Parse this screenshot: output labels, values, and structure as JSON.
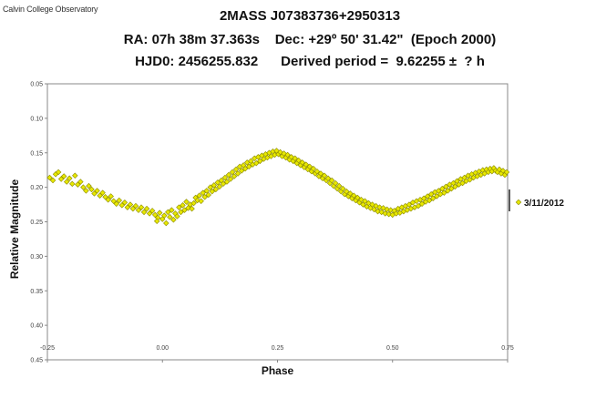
{
  "credit": "Calvin College Observatory",
  "title_lines": [
    "2MASS J07383736+2950313",
    "RA: 07h 38m 37.363s    Dec: +29º 50' 31.42\"  (Epoch 2000)",
    "HJD0: 2456255.832      Derived period =  9.62255 ±  ? h"
  ],
  "chart_data": {
    "type": "scatter",
    "xlabel": "Phase",
    "ylabel": "Relative Magnitude",
    "xlim": [
      -0.25,
      0.75
    ],
    "ylim": [
      0.05,
      0.45
    ],
    "y_inverted": true,
    "x_ticks": [
      -0.25,
      0.0,
      0.25,
      0.5,
      0.75
    ],
    "x_tick_labels": [
      "-0.25",
      "0.00",
      "0.25",
      "0.50",
      "0.75"
    ],
    "y_ticks": [
      0.05,
      0.1,
      0.15,
      0.2,
      0.25,
      0.3,
      0.35,
      0.4,
      0.45
    ],
    "y_tick_labels": [
      "0.05",
      "0.10",
      "0.15",
      "0.20",
      "0.25",
      "0.30",
      "0.35",
      "0.40",
      "0.45"
    ],
    "grid": false,
    "legend_position": "right",
    "series": [
      {
        "name": "3/11/2012",
        "color": "#e8e800",
        "edge_color": "#8a8a00",
        "marker": "diamond",
        "points": [
          [
            -0.245,
            0.186
          ],
          [
            -0.238,
            0.19
          ],
          [
            -0.232,
            0.181
          ],
          [
            -0.226,
            0.178
          ],
          [
            -0.22,
            0.188
          ],
          [
            -0.214,
            0.184
          ],
          [
            -0.208,
            0.192
          ],
          [
            -0.202,
            0.187
          ],
          [
            -0.196,
            0.195
          ],
          [
            -0.19,
            0.183
          ],
          [
            -0.184,
            0.196
          ],
          [
            -0.178,
            0.192
          ],
          [
            -0.172,
            0.2
          ],
          [
            -0.166,
            0.205
          ],
          [
            -0.16,
            0.198
          ],
          [
            -0.154,
            0.203
          ],
          [
            -0.148,
            0.209
          ],
          [
            -0.142,
            0.205
          ],
          [
            -0.136,
            0.212
          ],
          [
            -0.13,
            0.208
          ],
          [
            -0.124,
            0.214
          ],
          [
            -0.118,
            0.218
          ],
          [
            -0.112,
            0.213
          ],
          [
            -0.106,
            0.22
          ],
          [
            -0.1,
            0.224
          ],
          [
            -0.094,
            0.219
          ],
          [
            -0.088,
            0.226
          ],
          [
            -0.082,
            0.222
          ],
          [
            -0.076,
            0.229
          ],
          [
            -0.07,
            0.225
          ],
          [
            -0.064,
            0.231
          ],
          [
            -0.058,
            0.227
          ],
          [
            -0.052,
            0.233
          ],
          [
            -0.046,
            0.229
          ],
          [
            -0.04,
            0.236
          ],
          [
            -0.034,
            0.231
          ],
          [
            -0.028,
            0.238
          ],
          [
            -0.022,
            0.234
          ],
          [
            -0.016,
            0.24
          ],
          [
            -0.01,
            0.244
          ],
          [
            -0.012,
            0.249
          ],
          [
            -0.006,
            0.237
          ],
          [
            0.0,
            0.246
          ],
          [
            0.004,
            0.241
          ],
          [
            0.008,
            0.252
          ],
          [
            0.012,
            0.236
          ],
          [
            0.016,
            0.243
          ],
          [
            0.02,
            0.233
          ],
          [
            0.024,
            0.247
          ],
          [
            0.028,
            0.238
          ],
          [
            0.032,
            0.242
          ],
          [
            0.036,
            0.229
          ],
          [
            0.04,
            0.236
          ],
          [
            0.044,
            0.226
          ],
          [
            0.048,
            0.233
          ],
          [
            0.052,
            0.221
          ],
          [
            0.056,
            0.23
          ],
          [
            0.06,
            0.225
          ],
          [
            0.064,
            0.231
          ],
          [
            0.068,
            0.223
          ],
          [
            0.072,
            0.215
          ],
          [
            0.076,
            0.219
          ],
          [
            0.08,
            0.212
          ],
          [
            0.084,
            0.22
          ],
          [
            0.088,
            0.208
          ],
          [
            0.092,
            0.214
          ],
          [
            0.096,
            0.205
          ],
          [
            0.1,
            0.211
          ],
          [
            0.104,
            0.2
          ],
          [
            0.108,
            0.206
          ],
          [
            0.112,
            0.197
          ],
          [
            0.116,
            0.203
          ],
          [
            0.12,
            0.193
          ],
          [
            0.124,
            0.199
          ],
          [
            0.128,
            0.19
          ],
          [
            0.132,
            0.195
          ],
          [
            0.136,
            0.186
          ],
          [
            0.14,
            0.192
          ],
          [
            0.144,
            0.182
          ],
          [
            0.148,
            0.188
          ],
          [
            0.152,
            0.178
          ],
          [
            0.156,
            0.184
          ],
          [
            0.16,
            0.174
          ],
          [
            0.164,
            0.18
          ],
          [
            0.168,
            0.17
          ],
          [
            0.172,
            0.176
          ],
          [
            0.176,
            0.168
          ],
          [
            0.18,
            0.173
          ],
          [
            0.184,
            0.164
          ],
          [
            0.188,
            0.17
          ],
          [
            0.192,
            0.162
          ],
          [
            0.196,
            0.167
          ],
          [
            0.2,
            0.158
          ],
          [
            0.204,
            0.165
          ],
          [
            0.208,
            0.156
          ],
          [
            0.212,
            0.162
          ],
          [
            0.216,
            0.154
          ],
          [
            0.22,
            0.159
          ],
          [
            0.224,
            0.152
          ],
          [
            0.228,
            0.157
          ],
          [
            0.232,
            0.15
          ],
          [
            0.236,
            0.155
          ],
          [
            0.24,
            0.148
          ],
          [
            0.244,
            0.153
          ],
          [
            0.248,
            0.147
          ],
          [
            0.252,
            0.152
          ],
          [
            0.256,
            0.149
          ],
          [
            0.26,
            0.155
          ],
          [
            0.264,
            0.151
          ],
          [
            0.268,
            0.157
          ],
          [
            0.272,
            0.153
          ],
          [
            0.276,
            0.16
          ],
          [
            0.28,
            0.156
          ],
          [
            0.284,
            0.162
          ],
          [
            0.288,
            0.158
          ],
          [
            0.292,
            0.165
          ],
          [
            0.296,
            0.161
          ],
          [
            0.3,
            0.168
          ],
          [
            0.304,
            0.164
          ],
          [
            0.308,
            0.171
          ],
          [
            0.312,
            0.167
          ],
          [
            0.316,
            0.174
          ],
          [
            0.32,
            0.17
          ],
          [
            0.324,
            0.177
          ],
          [
            0.328,
            0.173
          ],
          [
            0.332,
            0.18
          ],
          [
            0.336,
            0.177
          ],
          [
            0.34,
            0.184
          ],
          [
            0.344,
            0.18
          ],
          [
            0.348,
            0.187
          ],
          [
            0.352,
            0.183
          ],
          [
            0.356,
            0.19
          ],
          [
            0.36,
            0.187
          ],
          [
            0.364,
            0.194
          ],
          [
            0.368,
            0.19
          ],
          [
            0.372,
            0.198
          ],
          [
            0.376,
            0.194
          ],
          [
            0.38,
            0.202
          ],
          [
            0.384,
            0.198
          ],
          [
            0.388,
            0.206
          ],
          [
            0.392,
            0.202
          ],
          [
            0.396,
            0.21
          ],
          [
            0.4,
            0.206
          ],
          [
            0.404,
            0.213
          ],
          [
            0.408,
            0.209
          ],
          [
            0.412,
            0.216
          ],
          [
            0.416,
            0.212
          ],
          [
            0.42,
            0.219
          ],
          [
            0.424,
            0.215
          ],
          [
            0.428,
            0.222
          ],
          [
            0.432,
            0.218
          ],
          [
            0.436,
            0.225
          ],
          [
            0.44,
            0.22
          ],
          [
            0.444,
            0.228
          ],
          [
            0.448,
            0.223
          ],
          [
            0.452,
            0.23
          ],
          [
            0.456,
            0.225
          ],
          [
            0.46,
            0.232
          ],
          [
            0.464,
            0.227
          ],
          [
            0.468,
            0.235
          ],
          [
            0.472,
            0.229
          ],
          [
            0.476,
            0.236
          ],
          [
            0.48,
            0.23
          ],
          [
            0.484,
            0.238
          ],
          [
            0.488,
            0.232
          ],
          [
            0.492,
            0.239
          ],
          [
            0.496,
            0.233
          ],
          [
            0.5,
            0.24
          ],
          [
            0.504,
            0.234
          ],
          [
            0.508,
            0.238
          ],
          [
            0.512,
            0.231
          ],
          [
            0.516,
            0.237
          ],
          [
            0.52,
            0.229
          ],
          [
            0.524,
            0.235
          ],
          [
            0.528,
            0.227
          ],
          [
            0.532,
            0.233
          ],
          [
            0.536,
            0.225
          ],
          [
            0.54,
            0.231
          ],
          [
            0.544,
            0.222
          ],
          [
            0.548,
            0.229
          ],
          [
            0.552,
            0.22
          ],
          [
            0.556,
            0.227
          ],
          [
            0.56,
            0.218
          ],
          [
            0.564,
            0.224
          ],
          [
            0.568,
            0.216
          ],
          [
            0.572,
            0.221
          ],
          [
            0.576,
            0.213
          ],
          [
            0.58,
            0.219
          ],
          [
            0.584,
            0.21
          ],
          [
            0.588,
            0.216
          ],
          [
            0.592,
            0.207
          ],
          [
            0.596,
            0.213
          ],
          [
            0.6,
            0.205
          ],
          [
            0.604,
            0.21
          ],
          [
            0.608,
            0.202
          ],
          [
            0.612,
            0.208
          ],
          [
            0.616,
            0.199
          ],
          [
            0.62,
            0.205
          ],
          [
            0.624,
            0.196
          ],
          [
            0.628,
            0.202
          ],
          [
            0.632,
            0.194
          ],
          [
            0.636,
            0.199
          ],
          [
            0.64,
            0.191
          ],
          [
            0.644,
            0.196
          ],
          [
            0.648,
            0.188
          ],
          [
            0.652,
            0.194
          ],
          [
            0.656,
            0.186
          ],
          [
            0.66,
            0.191
          ],
          [
            0.664,
            0.183
          ],
          [
            0.668,
            0.189
          ],
          [
            0.672,
            0.181
          ],
          [
            0.676,
            0.186
          ],
          [
            0.68,
            0.179
          ],
          [
            0.684,
            0.184
          ],
          [
            0.688,
            0.177
          ],
          [
            0.692,
            0.182
          ],
          [
            0.696,
            0.175
          ],
          [
            0.7,
            0.18
          ],
          [
            0.704,
            0.174
          ],
          [
            0.708,
            0.178
          ],
          [
            0.712,
            0.173
          ],
          [
            0.716,
            0.177
          ],
          [
            0.72,
            0.172
          ],
          [
            0.724,
            0.176
          ],
          [
            0.728,
            0.178
          ],
          [
            0.732,
            0.174
          ],
          [
            0.736,
            0.18
          ],
          [
            0.74,
            0.176
          ],
          [
            0.744,
            0.182
          ],
          [
            0.748,
            0.178
          ]
        ]
      }
    ]
  }
}
